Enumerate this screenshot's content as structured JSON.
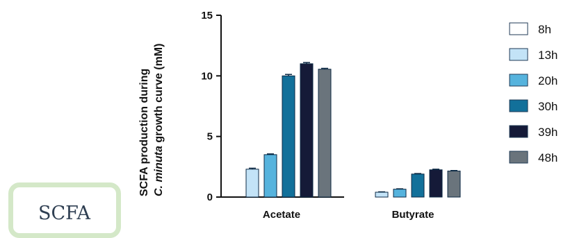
{
  "side_box": {
    "label": "SCFA"
  },
  "chart_data": {
    "type": "bar",
    "ylabel_line1": "SCFA production during",
    "ylabel_line2_italic": "C. minuta",
    "ylabel_line2_rest": " growth curve (mM)",
    "xlabel": "",
    "ylim": [
      0,
      15
    ],
    "yticks": [
      0,
      5,
      10,
      15
    ],
    "categories": [
      "Acetate",
      "Butyrate"
    ],
    "legend_position": "right",
    "series": [
      {
        "name": "8h",
        "color": "#ffffff",
        "values": [
          0.0,
          0.0
        ],
        "errors": [
          0,
          0
        ]
      },
      {
        "name": "13h",
        "color": "#c3e3f7",
        "values": [
          2.3,
          0.4
        ],
        "errors": [
          0.08,
          0.03
        ]
      },
      {
        "name": "20h",
        "color": "#56b3dd",
        "values": [
          3.5,
          0.65
        ],
        "errors": [
          0.06,
          0.03
        ]
      },
      {
        "name": "30h",
        "color": "#12709a",
        "values": [
          10.0,
          1.9
        ],
        "errors": [
          0.12,
          0.04
        ]
      },
      {
        "name": "39h",
        "color": "#151a38",
        "values": [
          11.0,
          2.25
        ],
        "errors": [
          0.1,
          0.05
        ]
      },
      {
        "name": "48h",
        "color": "#6a747c",
        "values": [
          10.55,
          2.15
        ],
        "errors": [
          0.07,
          0.04
        ]
      }
    ]
  }
}
